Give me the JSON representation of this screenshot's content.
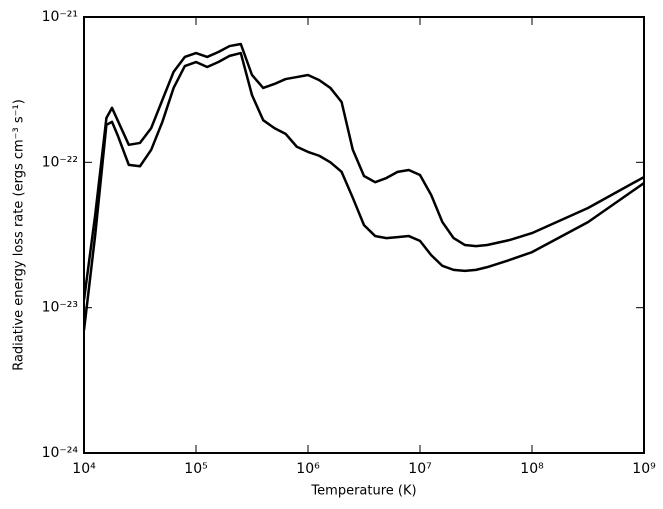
{
  "chart_data": {
    "type": "line",
    "xlabel": "Temperature (K)",
    "ylabel": "Radiative energy loss rate (ergs cm⁻³ s⁻¹)",
    "xlog": true,
    "ylog": true,
    "x": [
      10000,
      12589,
      15849,
      17783,
      19953,
      25119,
      31623,
      39811,
      50119,
      63096,
      79433,
      100000,
      125893,
      158489,
      199526,
      251189,
      316228,
      398107,
      501187,
      630957,
      794328,
      1000000,
      1258925,
      1584893,
      1995262,
      2511886,
      3162278,
      3981072,
      5011872,
      6309573,
      7943282,
      10000000,
      12589254,
      15848932,
      19952623,
      25118864,
      31622777,
      39810717,
      63095734,
      100000000,
      316227766,
      1000000000
    ],
    "series": [
      {
        "color": "#000000",
        "values": [
          1.13e-23,
          4.35e-23,
          2.02e-22,
          2.37e-22,
          1.95e-22,
          1.32e-22,
          1.36e-22,
          1.72e-22,
          2.69e-22,
          4.19e-22,
          5.31e-22,
          5.65e-22,
          5.31e-22,
          5.74e-22,
          6.31e-22,
          6.52e-22,
          3.99e-22,
          3.25e-22,
          3.46e-22,
          3.74e-22,
          3.86e-22,
          3.99e-22,
          3.68e-22,
          3.25e-22,
          2.6e-22,
          1.22e-22,
          8.05e-23,
          7.3e-23,
          7.8e-23,
          8.6e-23,
          8.85e-23,
          8.18e-23,
          5.96e-23,
          3.88e-23,
          3.01e-23,
          2.7e-23,
          2.65e-23,
          2.7e-23,
          2.92e-23,
          3.26e-23,
          4.85e-23,
          7.92e-23
        ]
      },
      {
        "color": "#000000",
        "values": [
          7e-24,
          3.16e-23,
          1.81e-22,
          1.9e-22,
          1.54e-22,
          9.6e-23,
          9.4e-23,
          1.22e-22,
          1.9e-22,
          3.25e-22,
          4.6e-22,
          4.9e-22,
          4.53e-22,
          4.9e-22,
          5.4e-22,
          5.65e-22,
          2.9e-22,
          1.95e-22,
          1.72e-22,
          1.57e-22,
          1.28e-22,
          1.18e-22,
          1.11e-22,
          1e-22,
          8.6e-23,
          5.7e-23,
          3.7e-23,
          3.11e-23,
          3.01e-23,
          3.06e-23,
          3.11e-23,
          2.88e-23,
          2.3e-23,
          1.94e-23,
          1.82e-23,
          1.79e-23,
          1.82e-23,
          1.9e-23,
          2.13e-23,
          2.41e-23,
          3.88e-23,
          7.2e-23
        ]
      }
    ],
    "xlim": [
      10000,
      1000000000
    ],
    "ylim": [
      1e-24,
      1e-21
    ],
    "xticks": [
      {
        "value": 10000,
        "label": "10⁴"
      },
      {
        "value": 100000,
        "label": "10⁵"
      },
      {
        "value": 1000000,
        "label": "10⁶"
      },
      {
        "value": 10000000,
        "label": "10⁷"
      },
      {
        "value": 100000000,
        "label": "10⁸"
      },
      {
        "value": 1000000000,
        "label": "10⁹"
      }
    ],
    "yticks": [
      {
        "value": 1e-24,
        "label": "10⁻²⁴"
      },
      {
        "value": 1e-23,
        "label": "10⁻²³"
      },
      {
        "value": 1e-22,
        "label": "10⁻²²"
      },
      {
        "value": 1e-21,
        "label": "10⁻²¹"
      }
    ],
    "grid": false
  }
}
